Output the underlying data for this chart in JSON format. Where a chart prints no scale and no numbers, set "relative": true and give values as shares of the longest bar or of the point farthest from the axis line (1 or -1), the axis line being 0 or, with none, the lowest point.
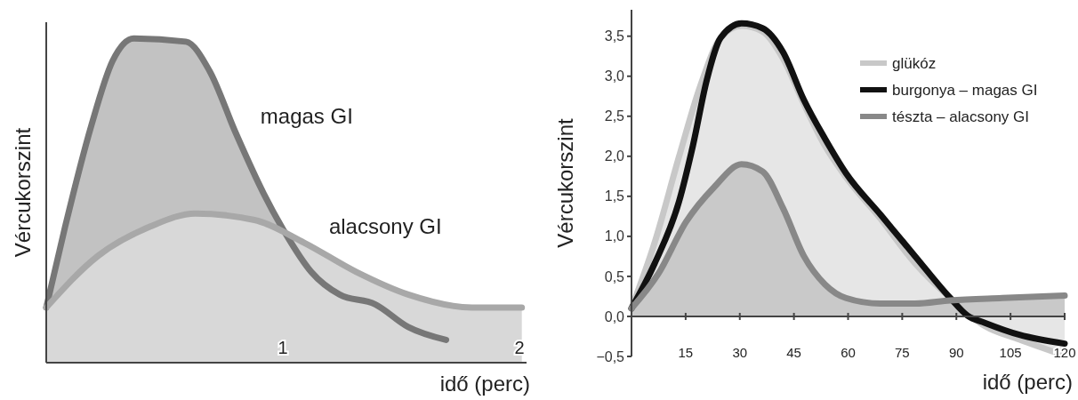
{
  "chart_data": [
    {
      "type": "area",
      "relative": true,
      "xlabel": "idő (perc)",
      "ylabel": "Vércukorszint",
      "xlim": [
        0,
        2.03
      ],
      "xticks": [
        1,
        2
      ],
      "legend": false,
      "series": [
        {
          "name": "magas GI",
          "color": "#777777",
          "x": [
            0,
            0.08,
            0.19,
            0.28,
            0.37,
            0.59,
            0.69,
            0.8,
            0.92,
            1.01,
            1.12,
            1.24,
            1.39,
            1.53,
            1.69
          ],
          "values": [
            0.17,
            0.42,
            0.73,
            0.93,
            1.0,
            0.99,
            0.9,
            0.71,
            0.52,
            0.4,
            0.28,
            0.21,
            0.18,
            0.11,
            0.07
          ]
        },
        {
          "name": "alacsony GI",
          "color": "#a8a8a8",
          "x": [
            0,
            0.22,
            0.44,
            0.63,
            0.88,
            1.09,
            1.31,
            1.53,
            1.8,
            2.01
          ],
          "values": [
            0.17,
            0.33,
            0.42,
            0.46,
            0.44,
            0.37,
            0.28,
            0.21,
            0.17,
            0.17
          ]
        }
      ]
    },
    {
      "type": "line",
      "xlabel": "idő (perc)",
      "ylabel": "Vércukorszint",
      "xlim": [
        0,
        120
      ],
      "ylim": [
        -0.5,
        3.83
      ],
      "xticks": [
        15,
        30,
        45,
        60,
        75,
        90,
        105,
        120
      ],
      "yticks": [
        {
          "value": -0.5,
          "label": "−0,5"
        },
        {
          "value": 0,
          "label": "0,0"
        },
        {
          "value": 0.5,
          "label": "0,5"
        },
        {
          "value": 1,
          "label": "1,0"
        },
        {
          "value": 1.5,
          "label": "1,5"
        },
        {
          "value": 2,
          "label": "2,0"
        },
        {
          "value": 2.5,
          "label": "2,5"
        },
        {
          "value": 3,
          "label": "3,0"
        },
        {
          "value": 3.5,
          "label": "3,5"
        }
      ],
      "legend": "top right",
      "series": [
        {
          "name": "glükóz",
          "type": "area",
          "color": "#c8c8c8",
          "x": [
            0,
            6.4,
            13.2,
            19,
            24.7,
            30.5,
            36.3,
            42,
            47.8,
            53.6,
            59.4,
            69,
            78.6,
            88.3,
            97.9,
            107.5,
            120
          ],
          "values": [
            0.1,
            0.92,
            2.0,
            2.87,
            3.48,
            3.63,
            3.56,
            3.22,
            2.65,
            2.13,
            1.74,
            1.22,
            0.66,
            0.23,
            -0.12,
            -0.29,
            -0.49
          ]
        },
        {
          "name": "burgonya – magas GI",
          "color": "#111111",
          "x": [
            0,
            6.4,
            13.2,
            17,
            20.9,
            24.7,
            30.5,
            36.3,
            42,
            47.8,
            53.6,
            59.4,
            69,
            78.6,
            88.3,
            93.1,
            97.9,
            107.5,
            120
          ],
          "values": [
            0.1,
            0.66,
            1.44,
            2.13,
            2.96,
            3.48,
            3.66,
            3.6,
            3.3,
            2.7,
            2.22,
            1.79,
            1.27,
            0.75,
            0.23,
            0.01,
            -0.08,
            -0.23,
            -0.34
          ]
        },
        {
          "name": "tészta – alacsony GI",
          "type": "area",
          "color": "#888888",
          "x": [
            0,
            7.4,
            15.1,
            22.8,
            30.5,
            36.3,
            42,
            47.8,
            53.6,
            59.4,
            69,
            78.6,
            88.3,
            102.7,
            120
          ],
          "values": [
            0.1,
            0.53,
            1.18,
            1.61,
            1.9,
            1.81,
            1.35,
            0.75,
            0.4,
            0.23,
            0.16,
            0.16,
            0.2,
            0.23,
            0.26
          ]
        }
      ]
    }
  ]
}
